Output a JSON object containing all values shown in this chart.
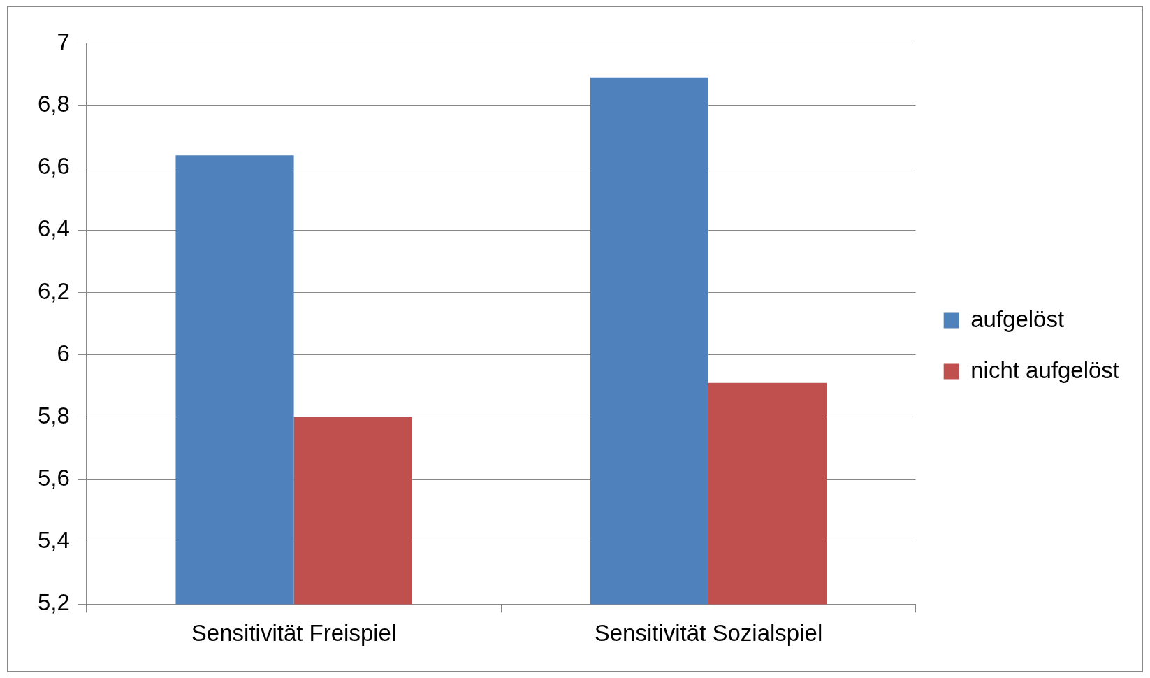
{
  "chart_data": {
    "type": "bar",
    "categories": [
      "Sensitivität Freispiel",
      "Sensitivität Sozialspiel"
    ],
    "series": [
      {
        "name": "aufgelöst",
        "color": "#4f81bd",
        "values": [
          6.64,
          6.89
        ]
      },
      {
        "name": "nicht aufgelöst",
        "color": "#c0504d",
        "values": [
          5.8,
          5.91
        ]
      }
    ],
    "ylim": [
      5.2,
      7
    ],
    "yticks": [
      {
        "value": 5.2,
        "label": "5,2"
      },
      {
        "value": 5.4,
        "label": "5,4"
      },
      {
        "value": 5.6,
        "label": "5,6"
      },
      {
        "value": 5.8,
        "label": "5,8"
      },
      6,
      {
        "value": 6.2,
        "label": "6,2"
      },
      {
        "value": 6.4,
        "label": "6,4"
      },
      {
        "value": 6.6,
        "label": "6,6"
      },
      {
        "value": 6.8,
        "label": "6,8"
      },
      7
    ],
    "grid": "y",
    "legend": "right"
  }
}
